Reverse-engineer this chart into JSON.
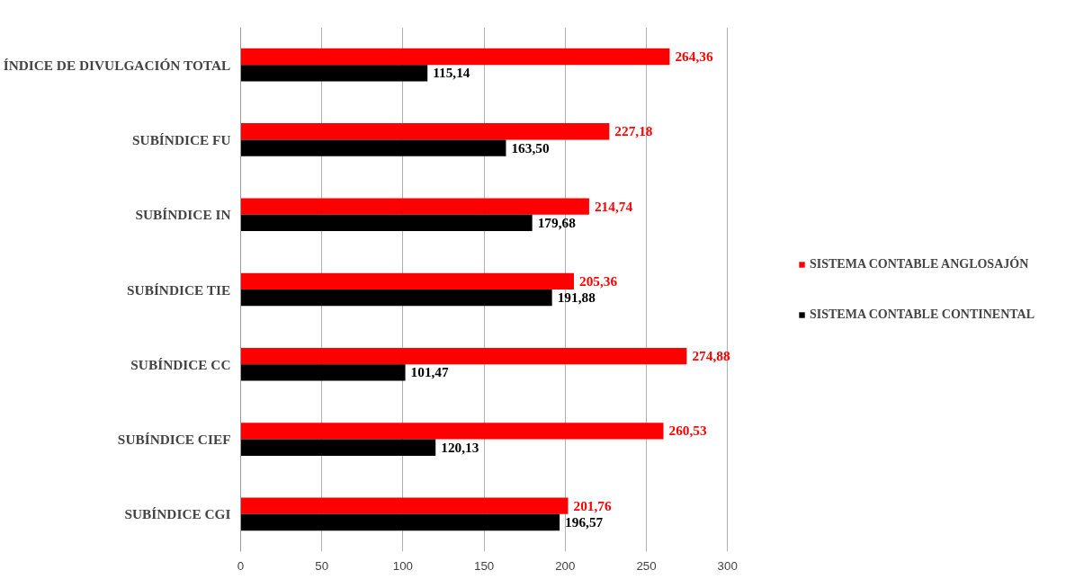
{
  "chart_data": {
    "type": "bar",
    "orientation": "horizontal",
    "categories": [
      "ÍNDICE DE DIVULGACIÓN TOTAL",
      "SUBÍNDICE FU",
      "SUBÍNDICE IN",
      "SUBÍNDICE TIE",
      "SUBÍNDICE CC",
      "SUBÍNDICE CIEF",
      "SUBÍNDICE CGI"
    ],
    "series": [
      {
        "name": "SISTEMA CONTABLE ANGLOSAJÓN",
        "color": "#ff0000",
        "values": [
          264.36,
          227.18,
          214.74,
          205.36,
          274.88,
          260.53,
          201.76
        ],
        "value_labels": [
          "264,36",
          "227,18",
          "214,74",
          "205,36",
          "274,88",
          "260,53",
          "201,76"
        ]
      },
      {
        "name": "SISTEMA CONTABLE CONTINENTAL",
        "color": "#000000",
        "values": [
          115.14,
          163.5,
          179.68,
          191.88,
          101.47,
          120.13,
          196.57
        ],
        "value_labels": [
          "115,14",
          "163,50",
          "179,68",
          "191,88",
          "101,47",
          "120,13",
          "196,57"
        ]
      }
    ],
    "xlim": [
      0,
      300
    ],
    "xticks": [
      0,
      50,
      100,
      150,
      200,
      250,
      300
    ],
    "grid": "x",
    "legend": "right"
  }
}
